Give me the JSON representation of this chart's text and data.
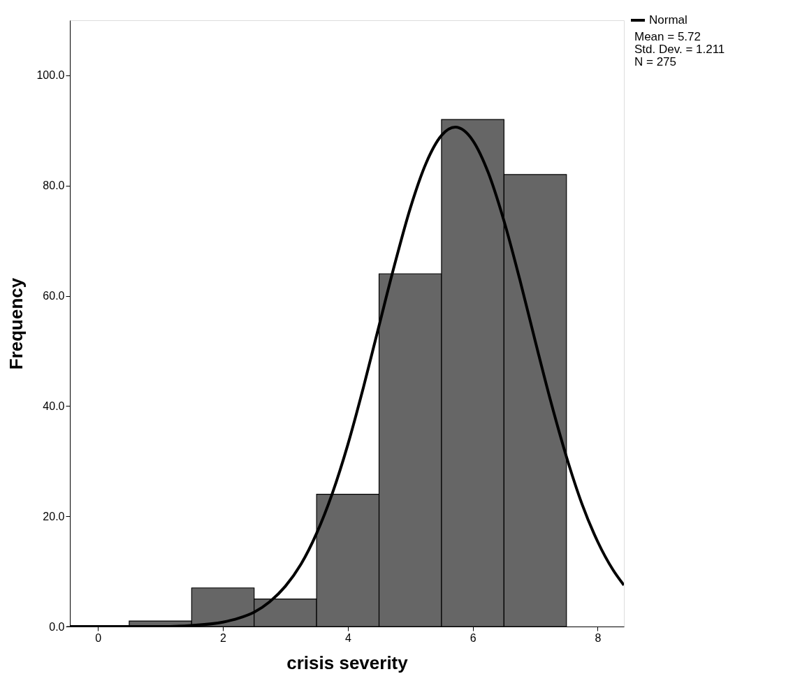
{
  "chart_data": {
    "type": "histogram",
    "xlabel": "crisis severity",
    "ylabel": "Frequency",
    "bins": [
      -0.5,
      0.5,
      1.5,
      2.5,
      3.5,
      4.5,
      5.5,
      6.5,
      7.5
    ],
    "series": [
      {
        "color": "#666666",
        "values": [
          0,
          1,
          7,
          5,
          24,
          64,
          92,
          82
        ]
      },
      {
        "type": "line",
        "name": "Normal",
        "color": "#000000",
        "x": [
          -0.45,
          0,
          1,
          1.5,
          2,
          2.25,
          2.5,
          2.75,
          3,
          3.25,
          3.5,
          3.75,
          4,
          4.25,
          4.5,
          4.75,
          5,
          5.25,
          5.5,
          5.72,
          6,
          6.25,
          6.5,
          6.75,
          7,
          7.25,
          7.5,
          7.75,
          8,
          8.25,
          8.42
        ],
        "values": [
          0.0,
          0.0,
          0.0,
          0.2,
          0.8,
          1.5,
          2.6,
          4.5,
          7.3,
          11.3,
          16.9,
          24.1,
          33.0,
          43.4,
          54.6,
          65.7,
          75.9,
          84.0,
          89.1,
          90.6,
          88.2,
          82.3,
          73.6,
          63.1,
          51.8,
          40.8,
          30.8,
          22.2,
          15.4,
          10.2,
          7.5
        ]
      }
    ],
    "xlim": [
      -0.45,
      8.42
    ],
    "xticks": [
      {
        "value": 0,
        "label": "0"
      },
      {
        "value": 2,
        "label": "2"
      },
      {
        "value": 4,
        "label": "4"
      },
      {
        "value": 6,
        "label": "6"
      },
      {
        "value": 8,
        "label": "8"
      }
    ],
    "ylim": [
      0,
      110
    ],
    "yticks": [
      {
        "value": 0,
        "label": "0.0"
      },
      {
        "value": 20,
        "label": "20.0"
      },
      {
        "value": 40,
        "label": "40.0"
      },
      {
        "value": 60,
        "label": "60.0"
      },
      {
        "value": 80,
        "label": "80.0"
      },
      {
        "value": 100,
        "label": "100.0"
      }
    ],
    "legend": "top right",
    "grid": false,
    "annotations": [
      "Mean = 5.72",
      "Std. Dev. = 1.211",
      "N = 275"
    ]
  }
}
